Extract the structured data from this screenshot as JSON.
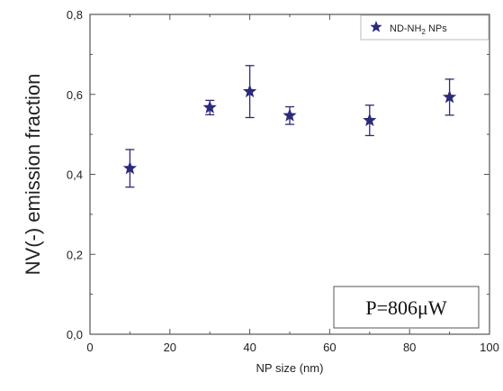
{
  "chart_data": {
    "type": "scatter",
    "title": "",
    "xlabel": "NP size (nm)",
    "ylabel": "NV(-) emission fraction",
    "xlim": [
      0,
      100
    ],
    "ylim": [
      0.0,
      0.8
    ],
    "xticks": [
      0,
      20,
      40,
      60,
      80,
      100
    ],
    "xtick_labels": [
      "0",
      "20",
      "40",
      "60",
      "80",
      "100"
    ],
    "yticks": [
      0.0,
      0.2,
      0.4,
      0.6,
      0.8
    ],
    "ytick_labels": [
      "0,0",
      "0,2",
      "0,4",
      "0,6",
      "0,8"
    ],
    "grid": false,
    "legend_position": "top-right",
    "series": [
      {
        "name": "ND-NH₂ NPs",
        "legend_main": "ND-NH",
        "legend_sub": "2",
        "legend_tail": " NPs",
        "marker": "star",
        "color": "#2b2a7a",
        "points": [
          {
            "x": 10,
            "y": 0.415,
            "err": 0.047
          },
          {
            "x": 30,
            "y": 0.567,
            "err": 0.018
          },
          {
            "x": 40,
            "y": 0.607,
            "err": 0.065
          },
          {
            "x": 50,
            "y": 0.547,
            "err": 0.022
          },
          {
            "x": 70,
            "y": 0.535,
            "err": 0.038
          },
          {
            "x": 90,
            "y": 0.593,
            "err": 0.045
          }
        ]
      }
    ],
    "annotation": "P=806μW"
  }
}
